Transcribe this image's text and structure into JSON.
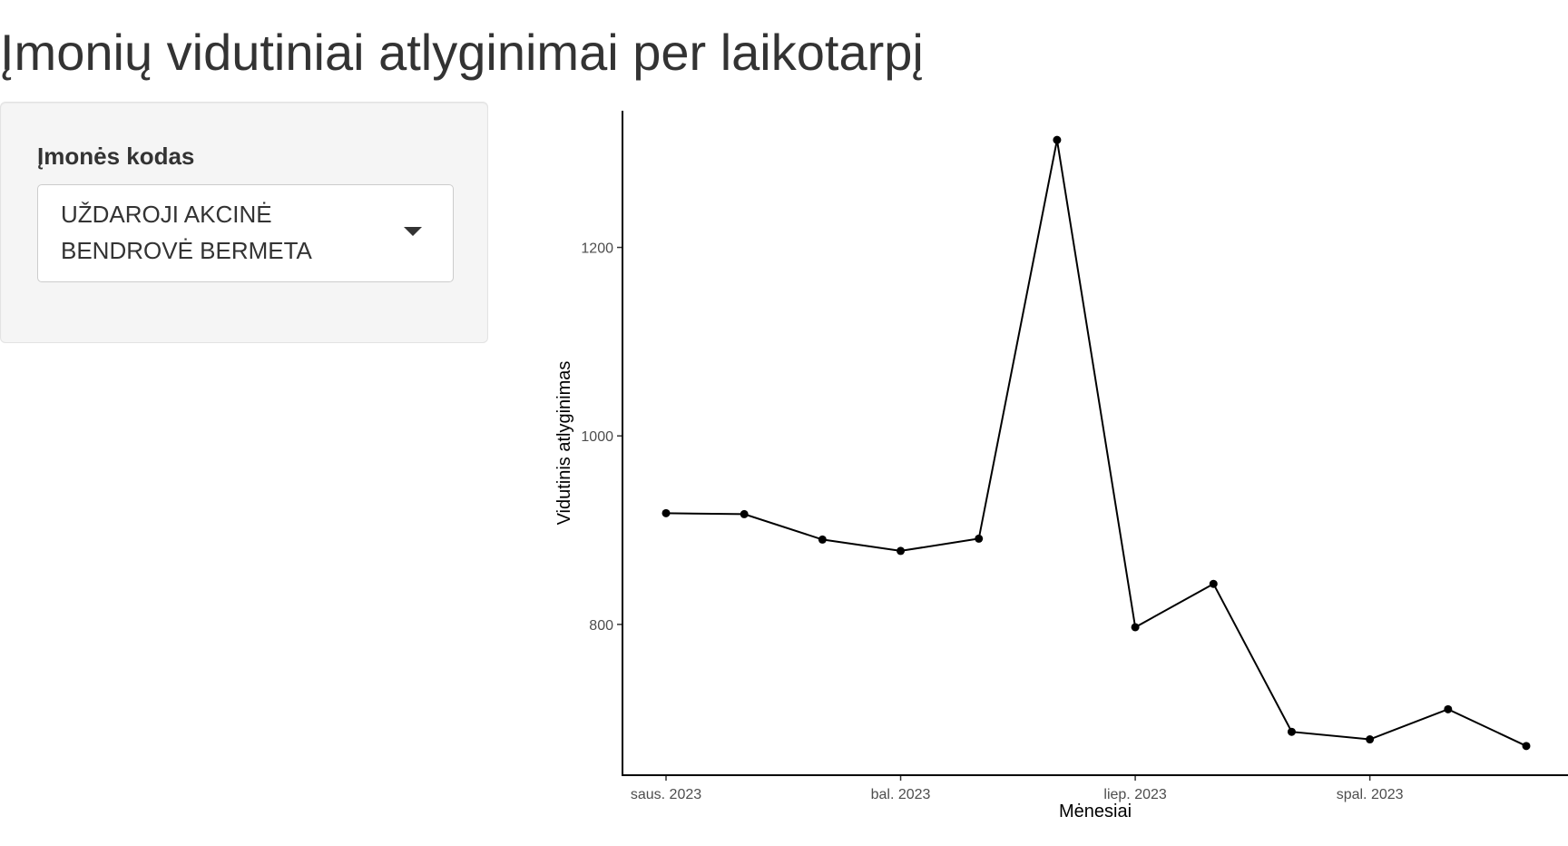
{
  "page": {
    "title": "Įmonių vidutiniai atlyginimai per laikotarpį"
  },
  "sidebar": {
    "company_label": "Įmonės kodas",
    "company_select": {
      "selected_line1": "UŽDAROJI AKCINĖ",
      "selected_line2": "BENDROVĖ BERMETA",
      "icon": "chevron-down-icon"
    }
  },
  "chart_data": {
    "type": "line",
    "x": [
      "2023-01",
      "2023-02",
      "2023-03",
      "2023-04",
      "2023-05",
      "2023-06",
      "2023-07",
      "2023-08",
      "2023-09",
      "2023-10",
      "2023-11",
      "2023-12"
    ],
    "series": [
      {
        "values": [
          918,
          917,
          890,
          878,
          891,
          1314,
          797,
          843,
          686,
          678,
          710,
          671
        ],
        "color": "#000000"
      }
    ],
    "xticks": [
      {
        "x": "2023-01",
        "label": "saus. 2023"
      },
      {
        "x": "2023-04",
        "label": "bal. 2023"
      },
      {
        "x": "2023-07",
        "label": "liep. 2023"
      },
      {
        "x": "2023-10",
        "label": "spal. 2023"
      }
    ],
    "yticks": [
      800,
      1000,
      1200
    ],
    "xlabel": "Mėnesiai",
    "ylabel": "Vidutinis atlyginimas",
    "ylim": [
      640,
      1345
    ],
    "grid": false
  }
}
